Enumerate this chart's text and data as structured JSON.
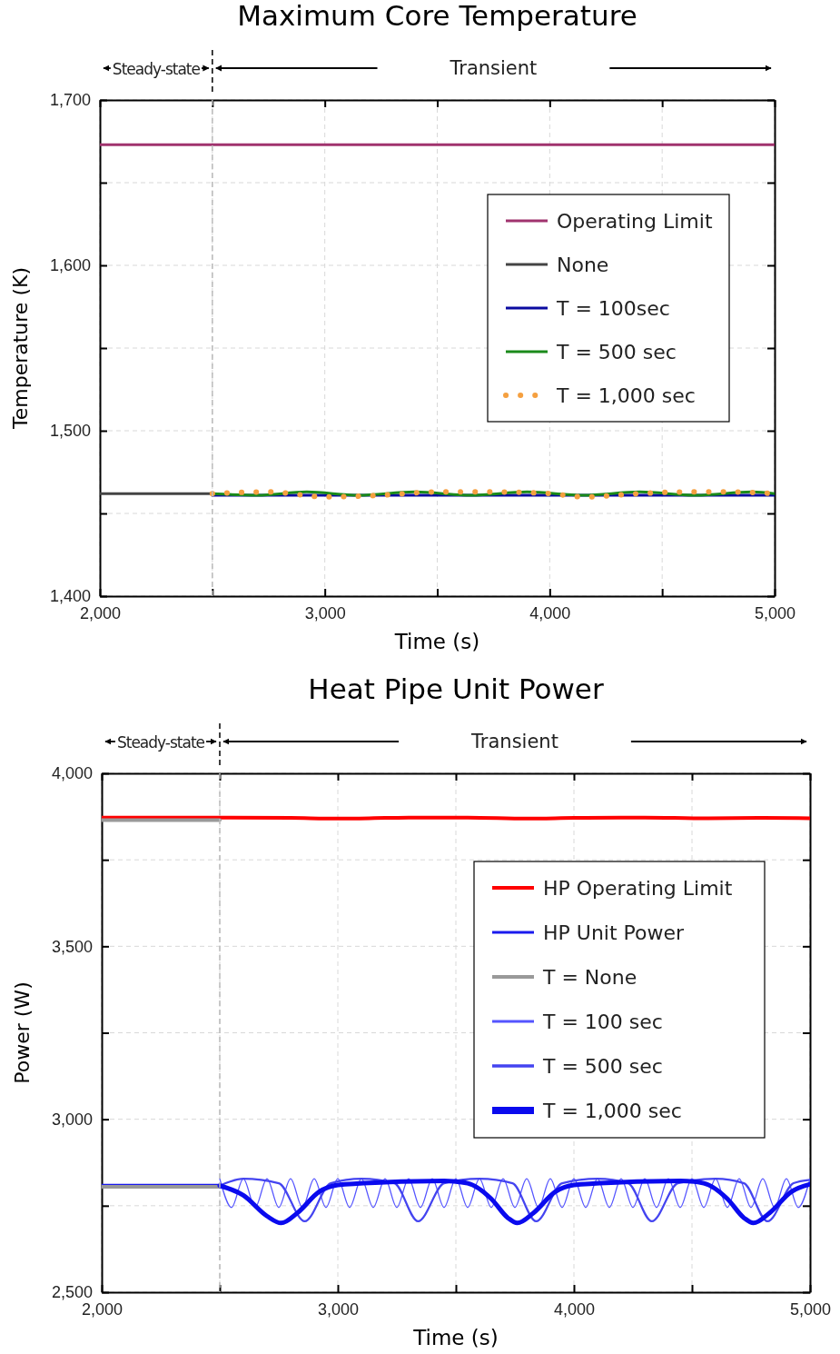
{
  "chart_data": [
    {
      "type": "line",
      "title": "Maximum Core Temperature",
      "xlabel": "Time (s)",
      "ylabel": "Temperature (K)",
      "xlim": [
        2000,
        5000
      ],
      "ylim": [
        1400,
        1700
      ],
      "xticks": [
        {
          "value": 2000,
          "label": "2,000"
        },
        {
          "value": 2500,
          "label": null
        },
        {
          "value": 3000,
          "label": "3,000"
        },
        {
          "value": 3500,
          "label": null
        },
        {
          "value": 4000,
          "label": "4,000"
        },
        {
          "value": 4500,
          "label": null
        },
        {
          "value": 5000,
          "label": "5,000"
        }
      ],
      "yticks": [
        {
          "value": 1400,
          "label": "1,400"
        },
        {
          "value": 1450,
          "label": null
        },
        {
          "value": 1500,
          "label": "1,500"
        },
        {
          "value": 1550,
          "label": null
        },
        {
          "value": 1600,
          "label": "1,600"
        },
        {
          "value": 1650,
          "label": null
        },
        {
          "value": 1700,
          "label": "1,700"
        }
      ],
      "grid": true,
      "legend": "right",
      "line_style": "solid",
      "ref_lines": [
        {
          "axis": "x",
          "value": 2500,
          "label": null,
          "line_style": "dashed"
        }
      ],
      "annotations": [
        "Steady-state",
        "Transient"
      ],
      "series": [
        {
          "name": "Operating Limit",
          "color": "#a0336e",
          "x": [
            2000,
            5000
          ],
          "values": [
            1673,
            1673
          ]
        },
        {
          "name": "None",
          "color": "#444444",
          "x": [
            2000,
            2500
          ],
          "values": [
            1462,
            1462
          ]
        },
        {
          "name": "T = 100sec",
          "color": "#0a0aa0",
          "x": [
            2500,
            3000,
            3500,
            4000,
            4500,
            5000
          ],
          "values": [
            1461,
            1461,
            1461,
            1461,
            1461,
            1461
          ]
        },
        {
          "name": "T = 500 sec",
          "color": "#1a8a1a",
          "x": [
            2500,
            2700,
            2920,
            3150,
            3400,
            3650,
            3900,
            4150,
            4400,
            4650,
            4900,
            5000
          ],
          "values": [
            1462,
            1461,
            1463,
            1461,
            1463,
            1461,
            1463,
            1461,
            1463,
            1461,
            1463,
            1462
          ]
        },
        {
          "name": "T = 1,000 sec",
          "color": "#f5a040",
          "line_style": "dotted",
          "x": [
            2500,
            2750,
            3000,
            3250,
            3500,
            3750,
            4000,
            4150,
            4400,
            4600,
            4800,
            5000
          ],
          "values": [
            1462,
            1463,
            1460,
            1461,
            1463,
            1463,
            1462,
            1460,
            1462,
            1463,
            1463,
            1462
          ]
        }
      ]
    },
    {
      "type": "line",
      "title": "Heat Pipe Unit Power",
      "xlabel": "Time (s)",
      "ylabel": "Power (W)",
      "xlim": [
        2000,
        5000
      ],
      "ylim": [
        2500,
        4000
      ],
      "xticks": [
        {
          "value": 2000,
          "label": "2,000"
        },
        {
          "value": 2500,
          "label": null
        },
        {
          "value": 3000,
          "label": "3,000"
        },
        {
          "value": 3500,
          "label": null
        },
        {
          "value": 4000,
          "label": "4,000"
        },
        {
          "value": 4500,
          "label": null
        },
        {
          "value": 5000,
          "label": "5,000"
        }
      ],
      "yticks": [
        {
          "value": 2500,
          "label": "2,500"
        },
        {
          "value": 2750,
          "label": null
        },
        {
          "value": 3000,
          "label": "3,000"
        },
        {
          "value": 3250,
          "label": null
        },
        {
          "value": 3500,
          "label": "3,500"
        },
        {
          "value": 3750,
          "label": null
        },
        {
          "value": 4000,
          "label": "4,000"
        }
      ],
      "grid": true,
      "legend": "right",
      "line_style": "solid",
      "ref_lines": [
        {
          "axis": "x",
          "value": 2500,
          "label": null,
          "line_style": "dashed"
        }
      ],
      "annotations": [
        "Steady-state",
        "Transient"
      ],
      "series": [
        {
          "name": "HP Operating Limit",
          "color": "#ff0000",
          "x": [
            2000,
            2500,
            2800,
            3000,
            3200,
            3300,
            3550,
            3800,
            4000,
            4200,
            4300,
            4550,
            4800,
            5000
          ],
          "values": [
            3872,
            3872,
            3871,
            3869,
            3871,
            3872,
            3872,
            3869,
            3871,
            3872,
            3872,
            3870,
            3871,
            3870
          ]
        },
        {
          "name": "HP Unit Power",
          "color": "#1a1aee",
          "x": [
            2000,
            2500
          ],
          "values": [
            2810,
            2810
          ]
        },
        {
          "name": "T = None",
          "color": "#999999",
          "x": [
            2000,
            2500
          ],
          "values": [
            2805,
            2805
          ]
        },
        {
          "color": "#999999",
          "x": [
            2000,
            2500
          ],
          "values": [
            3865,
            3865
          ]
        },
        {
          "name": "T = 100 sec",
          "color": "#5555ff",
          "x": [
            2500,
            2550,
            2600,
            2650,
            2700,
            2750,
            2800,
            2850,
            2900,
            2950,
            3000,
            3050,
            3100,
            3150,
            3200,
            3250,
            3300,
            3350,
            3400,
            3450,
            3500,
            3550,
            3600,
            3650,
            3700,
            3750,
            3800,
            3850,
            3900,
            3950,
            4000,
            4050,
            4100,
            4150,
            4200,
            4250,
            4300,
            4350,
            4400,
            4450,
            4500,
            4550,
            4600,
            4650,
            4700,
            4750,
            4800,
            4850,
            4900,
            4950,
            5000
          ],
          "values": [
            2828,
            2745,
            2828,
            2745,
            2828,
            2745,
            2828,
            2745,
            2828,
            2745,
            2828,
            2745,
            2828,
            2745,
            2828,
            2745,
            2828,
            2745,
            2828,
            2745,
            2828,
            2745,
            2828,
            2745,
            2828,
            2745,
            2828,
            2745,
            2828,
            2745,
            2828,
            2745,
            2828,
            2745,
            2828,
            2745,
            2828,
            2745,
            2828,
            2745,
            2828,
            2745,
            2828,
            2745,
            2828,
            2745,
            2828,
            2745,
            2828,
            2745,
            2828
          ]
        },
        {
          "name": "T = 500 sec",
          "color": "#4444f0",
          "x": [
            2500,
            2600,
            2750,
            2860,
            2970,
            3100,
            3240,
            3340,
            3450,
            3600,
            3740,
            3840,
            3950,
            4100,
            4230,
            4330,
            4440,
            4600,
            4720,
            4820,
            4930,
            5000
          ],
          "values": [
            2808,
            2828,
            2815,
            2705,
            2815,
            2828,
            2815,
            2705,
            2815,
            2828,
            2815,
            2705,
            2815,
            2828,
            2815,
            2705,
            2815,
            2828,
            2815,
            2705,
            2815,
            2825
          ]
        },
        {
          "name": "T = 1,000 sec",
          "color": "#0a0aee",
          "x": [
            2500,
            2600,
            2700,
            2760,
            2830,
            2920,
            3000,
            3200,
            3450,
            3550,
            3650,
            3720,
            3760,
            3830,
            3920,
            4000,
            4200,
            4450,
            4550,
            4650,
            4720,
            4760,
            4830,
            4920,
            5000
          ],
          "values": [
            2808,
            2780,
            2720,
            2700,
            2730,
            2790,
            2810,
            2818,
            2822,
            2815,
            2770,
            2715,
            2700,
            2730,
            2790,
            2810,
            2818,
            2822,
            2815,
            2770,
            2715,
            2700,
            2730,
            2790,
            2812
          ]
        }
      ]
    }
  ]
}
